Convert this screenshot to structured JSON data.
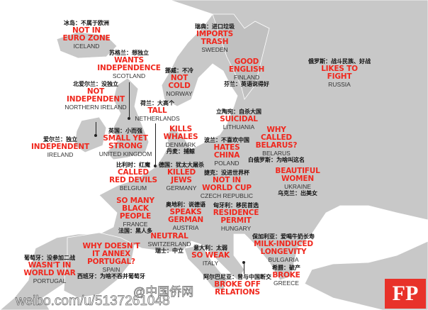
{
  "colors": {
    "land": "#c8c8c8",
    "sea": "#ffffff",
    "stereotype": "#f0281e",
    "logo": "#e8322a"
  },
  "labels": [
    {
      "id": "iceland",
      "cn": "冰岛：不属于欧洲",
      "red": [
        "NOT IN",
        "EURO ZONE"
      ],
      "country": "ICELAND"
    },
    {
      "id": "scotland",
      "cn": "苏格兰：想独立",
      "red": [
        "WANTS",
        "INDEPENDENCE"
      ],
      "country": "SCOTLAND"
    },
    {
      "id": "norway",
      "cn": "挪威：不冷",
      "red": [
        "NOT",
        "COLD"
      ],
      "country": "NORWAY"
    },
    {
      "id": "northern-ireland",
      "cn": "北爱尔兰：没独立",
      "red": [
        "NOT",
        "INDEPENDENT"
      ],
      "country": "NORTHERN IRELAND"
    },
    {
      "id": "netherlands",
      "cn": "荷兰：大高个",
      "red": [
        "TALL"
      ],
      "country": "NETHERLANDS"
    },
    {
      "id": "sweden",
      "cn": "瑞典：进口垃圾",
      "red": [
        "IMPORTS",
        "TRASH"
      ],
      "country": "SWEDEN"
    },
    {
      "id": "finland",
      "cn": "芬兰：英语说得好",
      "red": [
        "GOOD",
        "ENGLISH"
      ],
      "country": "FINLAND"
    },
    {
      "id": "russia",
      "cn": "俄罗斯：战斗民族、好战",
      "red": [
        "LIKES TO",
        "FIGHT"
      ],
      "country": "RUSSIA"
    },
    {
      "id": "lithuania",
      "cn": "立陶宛：自杀大国",
      "red": [
        "SUICIDAL"
      ],
      "country": "LITHUANIA"
    },
    {
      "id": "belarus",
      "cn": "白俄罗斯：为啥叫这名",
      "red": [
        "WHY",
        "CALLED",
        "BELARUS?"
      ],
      "country": "BELARUS"
    },
    {
      "id": "denmark",
      "cn": "丹麦：捕鲸",
      "red": [
        "KILLS",
        "WHALES"
      ],
      "country": "DENMARK"
    },
    {
      "id": "united-kingdom",
      "cn": "英国：小而强",
      "red": [
        "SMALL YET",
        "STRONG"
      ],
      "country": "UNITED KINGDOM"
    },
    {
      "id": "ireland",
      "cn": "爱尔兰：独立",
      "red": [
        "INDEPENDENT"
      ],
      "country": "IRELAND"
    },
    {
      "id": "poland",
      "cn": "波兰：不喜欢中国",
      "red": [
        "HATES",
        "CHINA"
      ],
      "country": "POLAND"
    },
    {
      "id": "belgium",
      "cn": "比利时：红魔",
      "red": [
        "CALLED",
        "RED DEVILS"
      ],
      "country": "BELGIUM"
    },
    {
      "id": "germany",
      "cn": "德国：犹太大屠杀",
      "red": [
        "KILLED",
        "JEWS"
      ],
      "country": "GERMANY"
    },
    {
      "id": "czech",
      "cn": "捷克：没进世界杯",
      "red": [
        "NOT IN",
        "WORLD CUP"
      ],
      "country": "CZECH REPUBLIC"
    },
    {
      "id": "ukraine",
      "cn": "乌克兰：出美女",
      "red": [
        "BEAUTIFUL",
        "WOMEN"
      ],
      "country": "UKRAINE"
    },
    {
      "id": "france",
      "cn": "法国：黑人多",
      "red": [
        "SO MANY",
        "BLACK",
        "PEOPLE"
      ],
      "country": "FRANCE"
    },
    {
      "id": "austria",
      "cn": "奥地利：说德语",
      "red": [
        "SPEAKS",
        "GERMAN"
      ],
      "country": "AUSTRIA"
    },
    {
      "id": "hungary",
      "cn": "匈牙利：移民首选",
      "red": [
        "RESIDENCE",
        "PERMIT"
      ],
      "country": "HUNGARY"
    },
    {
      "id": "switzerland",
      "cn": "瑞士：中立",
      "red": [
        "NEUTRAL"
      ],
      "country": "SWITZERLAND"
    },
    {
      "id": "bulgaria",
      "cn": "保加利亚：爱喝牛奶长寿",
      "red": [
        "MILK-INDUCED",
        "LONGEVITY"
      ],
      "country": "BULGARIA"
    },
    {
      "id": "italy",
      "cn": "意大利：太弱",
      "red": [
        "SO WEAK"
      ],
      "country": "ITALY"
    },
    {
      "id": "spain",
      "cn": "西班牙：为啥不吞并葡萄牙",
      "red": [
        "WHY DOESN'T",
        "IT ANNEX",
        "PORTUGAL?"
      ],
      "country": "SPAIN"
    },
    {
      "id": "portugal",
      "cn": "葡萄牙：没参加二战",
      "red": [
        "WASN'T IN",
        "WORLD WAR"
      ],
      "country": "PORTUGAL"
    },
    {
      "id": "greece",
      "cn": "希腊：破产",
      "red": [
        "BROKE"
      ],
      "country": "GREECE"
    },
    {
      "id": "albania",
      "cn": "阿尔巴尼亚：曾与中国断交",
      "red": [
        "BROKE OFF",
        "RELATIONS"
      ],
      "country": ""
    }
  ],
  "logo": {
    "text": "FP"
  },
  "watermark": {
    "handle": "@中国侨网",
    "url": "weibo.com/u/5137261048"
  }
}
